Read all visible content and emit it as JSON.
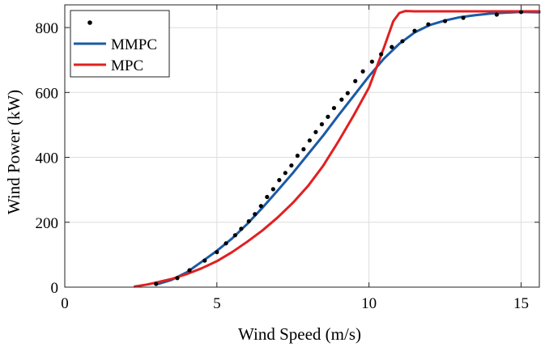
{
  "chart_data": {
    "type": "line",
    "title": "",
    "xlabel": "Wind Speed (m/s)",
    "ylabel": "Wind Power (kW)",
    "xlim": [
      0,
      15.6
    ],
    "ylim": [
      0,
      870
    ],
    "grid": true,
    "legend_position": "top-left",
    "xticks": [
      0,
      5,
      10,
      15
    ],
    "yticks": [
      0,
      200,
      400,
      600,
      800
    ],
    "series": [
      {
        "name": "",
        "kind": "scatter",
        "color": "#000000",
        "x": [
          3.0,
          3.7,
          4.1,
          4.6,
          5.0,
          5.3,
          5.6,
          5.8,
          6.05,
          6.25,
          6.45,
          6.65,
          6.85,
          7.05,
          7.25,
          7.45,
          7.65,
          7.85,
          8.05,
          8.25,
          8.45,
          8.65,
          8.85,
          9.1,
          9.3,
          9.55,
          9.8,
          10.1,
          10.4,
          10.75,
          11.1,
          11.5,
          11.95,
          12.5,
          13.1,
          14.2,
          15.0
        ],
        "y": [
          10,
          28,
          52,
          82,
          108,
          135,
          160,
          180,
          203,
          225,
          250,
          278,
          302,
          330,
          352,
          375,
          405,
          425,
          452,
          478,
          502,
          525,
          552,
          578,
          598,
          635,
          665,
          695,
          718,
          740,
          758,
          790,
          810,
          820,
          830,
          840,
          848
        ]
      },
      {
        "name": "MMPC",
        "kind": "line",
        "color": "#1a5aa6",
        "x": [
          3.0,
          3.5,
          4.0,
          4.5,
          5.0,
          5.5,
          6.0,
          6.5,
          7.0,
          7.5,
          8.0,
          8.5,
          9.0,
          9.5,
          10.0,
          10.5,
          11.0,
          11.5,
          12.0,
          12.5,
          13.0,
          13.5,
          14.0,
          14.5,
          15.0,
          15.6
        ],
        "y": [
          8,
          22,
          45,
          78,
          112,
          150,
          195,
          245,
          298,
          352,
          410,
          468,
          530,
          590,
          650,
          705,
          750,
          785,
          808,
          822,
          832,
          838,
          843,
          846,
          848,
          847
        ]
      },
      {
        "name": "MPC",
        "kind": "line",
        "color": "#e02020",
        "x": [
          2.3,
          2.7,
          3.0,
          3.5,
          4.0,
          4.5,
          5.0,
          5.5,
          6.0,
          6.5,
          7.0,
          7.5,
          8.0,
          8.5,
          9.0,
          9.5,
          10.0,
          10.5,
          10.8,
          11.0,
          11.2,
          11.5,
          12.0,
          13.0,
          14.0,
          15.0,
          15.6
        ],
        "y": [
          2,
          8,
          14,
          25,
          40,
          58,
          80,
          108,
          140,
          175,
          215,
          260,
          312,
          375,
          450,
          530,
          615,
          740,
          820,
          845,
          851,
          850,
          850,
          850,
          850,
          850,
          850
        ]
      }
    ]
  }
}
